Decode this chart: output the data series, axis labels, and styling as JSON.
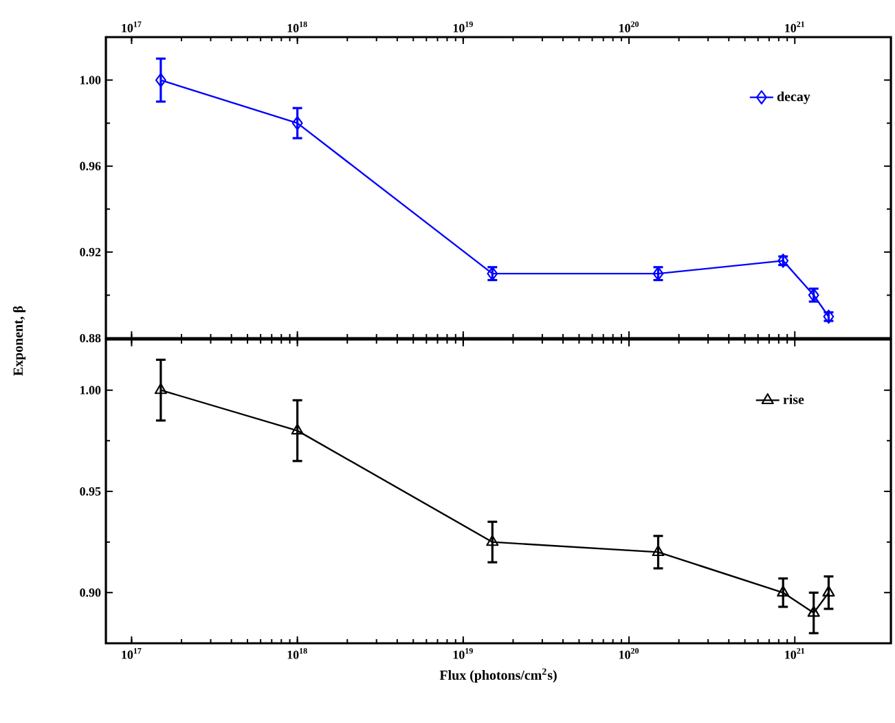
{
  "chart_data": [
    {
      "type": "line",
      "ylabel": "Exponent, β",
      "xlim": [
        7e+16,
        3.8e+21
      ],
      "log": "x",
      "ylim": [
        0.88,
        1.02
      ],
      "yticks": [
        {
          "value": 0.88,
          "label": "0.88"
        },
        {
          "value": 0.92,
          "label": "0.92"
        },
        {
          "value": 0.96,
          "label": "0.96"
        },
        {
          "value": 1.0,
          "label": "1.00"
        }
      ],
      "xticks": [
        {
          "value": 1e+17,
          "label": "10$^{17}$"
        },
        {
          "value": 1e+18,
          "label": "10$^{18}$"
        },
        {
          "value": 1e+19,
          "label": "10$^{19}$"
        },
        {
          "value": 1e+20,
          "label": "10$^{20}$"
        },
        {
          "value": 1e+21,
          "label": "10$^{21}$"
        }
      ],
      "x": [
        1.5e+17,
        1e+18,
        1.5e+19,
        1.5e+20,
        8.5e+20,
        1.3e+21,
        1.6e+21
      ],
      "legend": "top right",
      "series": [
        {
          "name": "decay",
          "color": "#0000ff",
          "marker": "diamond",
          "values": [
            1.0,
            0.98,
            0.91,
            0.91,
            0.916,
            0.9,
            0.89
          ],
          "errors": [
            0.01,
            0.007,
            0.003,
            0.003,
            0.002,
            0.003,
            0.002
          ]
        }
      ]
    },
    {
      "type": "line",
      "xlabel": "Flux (photons/cm$^{2}$s)",
      "xlim": [
        7e+16,
        3.8e+21
      ],
      "log": "x",
      "ylim": [
        0.875,
        1.025
      ],
      "yticks": [
        {
          "value": 0.9,
          "label": "0.90"
        },
        {
          "value": 0.95,
          "label": "0.95"
        },
        {
          "value": 1.0,
          "label": "1.00"
        }
      ],
      "xticks": [
        {
          "value": 1e+17,
          "label": "10$^{17}$"
        },
        {
          "value": 1e+18,
          "label": "10$^{18}$"
        },
        {
          "value": 1e+19,
          "label": "10$^{19}$"
        },
        {
          "value": 1e+20,
          "label": "10$^{20}$"
        },
        {
          "value": 1e+21,
          "label": "10$^{21}$"
        }
      ],
      "x": [
        1.5e+17,
        1e+18,
        1.5e+19,
        1.5e+20,
        8.5e+20,
        1.3e+21,
        1.6e+21
      ],
      "legend": "top right",
      "series": [
        {
          "name": "rise",
          "color": "#000000",
          "marker": "triangle",
          "values": [
            1.0,
            0.98,
            0.925,
            0.92,
            0.9,
            0.89,
            0.9
          ],
          "errors": [
            0.015,
            0.015,
            0.01,
            0.008,
            0.007,
            0.01,
            0.008
          ]
        }
      ]
    }
  ]
}
